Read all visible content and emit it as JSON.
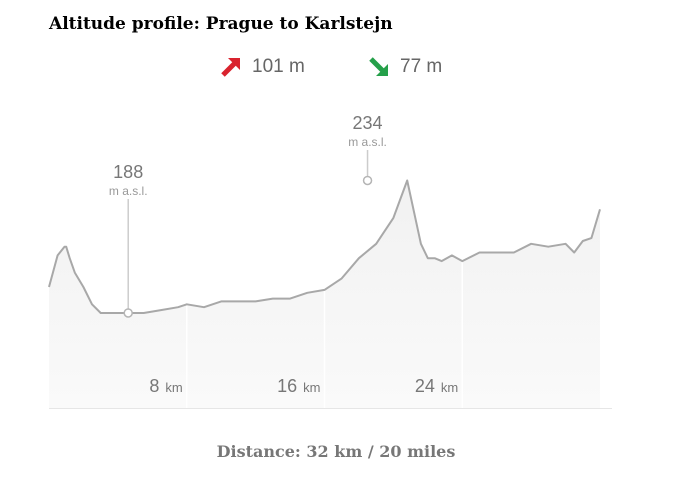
{
  "title": "Altitude profile: Prague to Karlstejn",
  "stats": {
    "ascent": "101 m",
    "descent": "77 m",
    "ascent_color": "#d9232e",
    "descent_color": "#25a04a"
  },
  "footer": "Distance: 32 km / 20 miles",
  "chart_data": {
    "type": "area",
    "xlabel": "",
    "ylabel": "",
    "x_unit": "km",
    "y_unit": "m a.s.l.",
    "xlim": [
      0,
      32
    ],
    "ylim": [
      155,
      255
    ],
    "x": [
      0,
      0.5,
      0.9,
      1.0,
      1.2,
      1.5,
      2.0,
      2.5,
      3.0,
      3.5,
      4.0,
      4.6,
      5.5,
      6.5,
      7.5,
      8.0,
      9.0,
      10.0,
      11.0,
      12.0,
      13.0,
      14.0,
      15.0,
      16.0,
      17.0,
      18.0,
      19.0,
      20.0,
      20.8,
      21.6,
      22.0,
      22.4,
      22.8,
      23.4,
      24.0,
      25.0,
      26.0,
      27.0,
      28.0,
      29.0,
      30.0,
      30.5,
      31.0,
      31.5,
      32.0
    ],
    "y": [
      197,
      208,
      211,
      211,
      207,
      202,
      197,
      191,
      188,
      188,
      188,
      188,
      188,
      189,
      190,
      191,
      190,
      192,
      192,
      192,
      193,
      193,
      195,
      196,
      200,
      207,
      212,
      221,
      234,
      212,
      207,
      207,
      206,
      208,
      206,
      209,
      209,
      209,
      212,
      211,
      212,
      209,
      213,
      214,
      224
    ],
    "markers": [
      {
        "x": 4.6,
        "y": 188,
        "value": "188",
        "unit": "m a.s.l.",
        "role": "minimum"
      },
      {
        "x": 18.5,
        "y": 234,
        "value": "234",
        "unit": "m a.s.l.",
        "role": "maximum"
      }
    ],
    "x_ticks": [
      {
        "value": "8",
        "unit": "km",
        "at": 8
      },
      {
        "value": "16",
        "unit": "km",
        "at": 16
      },
      {
        "value": "24",
        "unit": "km",
        "at": 24
      }
    ],
    "grid": true,
    "colors": {
      "fill": "#f2f2f2",
      "line": "#a8a8a8",
      "marker_line": "#cccccc",
      "label": "#777777"
    }
  }
}
